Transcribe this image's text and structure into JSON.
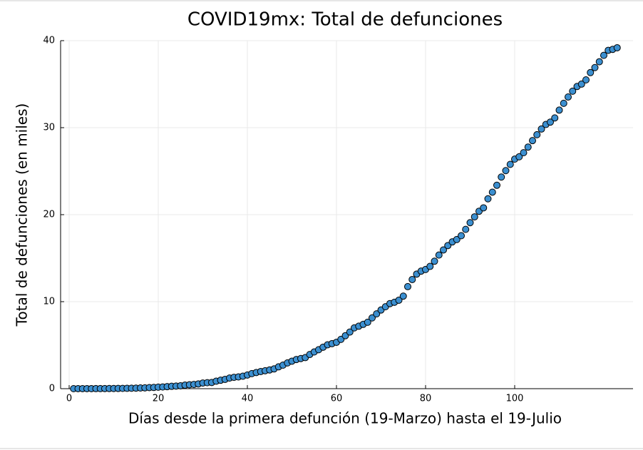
{
  "chart_data": {
    "type": "scatter",
    "title": "COVID19mx: Total de defunciones",
    "xlabel": "Días desde la primera defunción (19-Marzo) hasta el 19-Julio",
    "ylabel": "Total de defunciones (en miles)",
    "color": "#3b8fd0",
    "grid": true,
    "xlim": [
      -1.92,
      126.56
    ],
    "ylim": [
      0,
      40
    ],
    "xticks": [
      0,
      20,
      40,
      60,
      80,
      100
    ],
    "yticks": [
      0,
      10,
      20,
      30,
      40
    ],
    "x": [
      1,
      2,
      3,
      4,
      5,
      6,
      7,
      8,
      9,
      10,
      11,
      12,
      13,
      14,
      15,
      16,
      17,
      18,
      19,
      20,
      21,
      22,
      23,
      24,
      25,
      26,
      27,
      28,
      29,
      30,
      31,
      32,
      33,
      34,
      35,
      36,
      37,
      38,
      39,
      40,
      41,
      42,
      43,
      44,
      45,
      46,
      47,
      48,
      49,
      50,
      51,
      52,
      53,
      54,
      55,
      56,
      57,
      58,
      59,
      60,
      61,
      62,
      63,
      64,
      65,
      66,
      67,
      68,
      69,
      70,
      71,
      72,
      73,
      74,
      75,
      76,
      77,
      78,
      79,
      80,
      81,
      82,
      83,
      84,
      85,
      86,
      87,
      88,
      89,
      90,
      91,
      92,
      93,
      94,
      95,
      96,
      97,
      98,
      99,
      100,
      101,
      102,
      103,
      104,
      105,
      106,
      107,
      108,
      109,
      110,
      111,
      112,
      113,
      114,
      115,
      116,
      117,
      118,
      119,
      120,
      121,
      122,
      123
    ],
    "values": [
      0.001,
      0.002,
      0.003,
      0.004,
      0.005,
      0.006,
      0.008,
      0.012,
      0.016,
      0.02,
      0.028,
      0.029,
      0.037,
      0.05,
      0.06,
      0.079,
      0.094,
      0.125,
      0.141,
      0.174,
      0.194,
      0.233,
      0.273,
      0.296,
      0.332,
      0.406,
      0.449,
      0.486,
      0.546,
      0.65,
      0.686,
      0.712,
      0.857,
      0.97,
      1.069,
      1.221,
      1.305,
      1.351,
      1.434,
      1.569,
      1.732,
      1.859,
      1.972,
      2.061,
      2.154,
      2.271,
      2.507,
      2.704,
      2.961,
      3.16,
      3.353,
      3.465,
      3.573,
      3.926,
      4.22,
      4.477,
      4.767,
      5.045,
      5.177,
      5.332,
      5.666,
      6.09,
      6.51,
      6.989,
      7.179,
      7.394,
      7.633,
      8.134,
      8.597,
      9.044,
      9.415,
      9.779,
      9.93,
      10.167,
      10.637,
      11.729,
      12.545,
      13.17,
      13.511,
      13.699,
      14.053,
      14.649,
      15.357,
      15.944,
      16.448,
      16.872,
      17.141,
      17.58,
      18.31,
      19.08,
      19.747,
      20.394,
      20.781,
      21.825,
      22.584,
      23.377,
      24.324,
      25.06,
      25.779,
      26.381,
      26.648,
      27.121,
      27.769,
      28.51,
      29.189,
      29.843,
      30.366,
      30.639,
      31.119,
      32.014,
      32.796,
      33.526,
      34.191,
      34.73,
      35.006,
      35.491,
      36.327,
      36.906,
      37.574,
      38.31,
      38.888,
      39.0,
      39.184
    ]
  }
}
